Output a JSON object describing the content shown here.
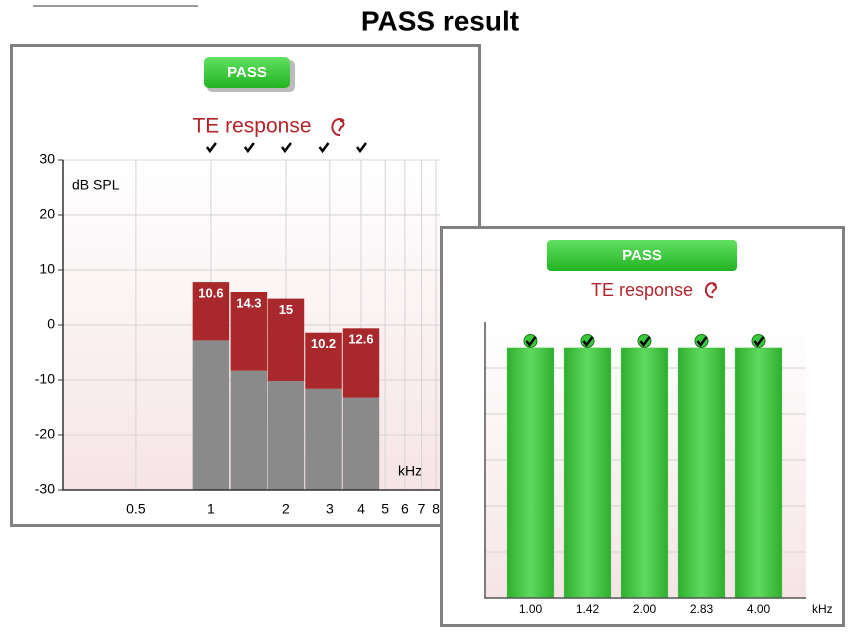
{
  "title": "PASS result",
  "chart_data": [
    {
      "type": "bar",
      "stacked": true,
      "badge": "PASS",
      "title": "TE response",
      "x": [
        1,
        1.42,
        2,
        2.83,
        4
      ],
      "xscale": "log",
      "xlim": [
        0.255,
        8.3
      ],
      "xticks": [
        0.5,
        1,
        2,
        3,
        4,
        5,
        6,
        7,
        8
      ],
      "xlabel": "kHz",
      "ylim": [
        -30,
        30
      ],
      "yticks": [
        -30,
        -20,
        -10,
        0,
        10,
        20,
        30
      ],
      "ylabel": "dB SPL",
      "grid": true,
      "series": [
        {
          "color": "#8a8a8a",
          "values": [
            -2.8,
            -8.3,
            -10.2,
            -11.6,
            -13.2
          ]
        },
        {
          "color": "#a8282c",
          "values": [
            10.6,
            14.3,
            15.0,
            10.2,
            12.6
          ]
        }
      ]
    },
    {
      "type": "bar",
      "badge": "PASS",
      "title": "TE response",
      "categories": [
        "1.00",
        "1.42",
        "2.00",
        "2.83",
        "4.00"
      ],
      "xlabel": "kHz",
      "ylim": [
        0,
        100
      ],
      "values": [
        90.6,
        90.6,
        90.6,
        90.6,
        90.6
      ],
      "color": "#3ec63e"
    }
  ]
}
